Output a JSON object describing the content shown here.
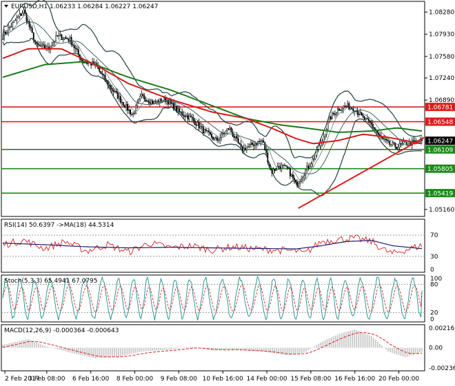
{
  "chart_data": [
    {
      "type": "candlestick",
      "panel": "main",
      "title": "EURUSD,H1  1.06233 1.06284 1.06227 1.06247",
      "symbol": "EURUSD",
      "timeframe": "H1",
      "ohlc_header": {
        "open": 1.06233,
        "high": 1.06284,
        "low": 1.06227,
        "close": 1.06247
      },
      "ylim": [
        1.0505,
        1.0845
      ],
      "y_ticks": [
        "1.08280",
        "1.07930",
        "1.07580",
        "1.07240",
        "1.06890",
        "1.05160"
      ],
      "x_ticks": [
        "2 Feb 2017",
        "3 Feb 08:00",
        "6 Feb 16:00",
        "8 Feb 00:00",
        "9 Feb 08:00",
        "10 Feb 16:00",
        "14 Feb 00:00",
        "15 Feb 08:00",
        "16 Feb 16:00",
        "20 Feb 00:00"
      ],
      "current_price": "1.06247",
      "horizontal_levels": [
        {
          "value": 1.06781,
          "label": "1.06781",
          "color": "#e11b1b"
        },
        {
          "value": 1.06548,
          "label": "1.06548",
          "color": "#e11b1b"
        },
        {
          "value": 1.06109,
          "label": "1.06109",
          "color": "#1a8a1a"
        },
        {
          "value": 1.05805,
          "label": "1.05805",
          "color": "#1a8a1a"
        },
        {
          "value": 1.05419,
          "label": "1.05419",
          "color": "#1a8a1a"
        }
      ],
      "trendline": {
        "from": [
          0.705,
          1.0518
        ],
        "to": [
          1.0,
          1.063
        ],
        "color": "#e11b1b"
      },
      "anchors": {
        "close": [
          [
            0,
            1.079
          ],
          [
            0.03,
            1.0815
          ],
          [
            0.05,
            1.083
          ],
          [
            0.08,
            1.0775
          ],
          [
            0.11,
            1.077
          ],
          [
            0.13,
            1.079
          ],
          [
            0.16,
            1.0785
          ],
          [
            0.19,
            1.075
          ],
          [
            0.22,
            1.0745
          ],
          [
            0.25,
            1.0715
          ],
          [
            0.28,
            1.069
          ],
          [
            0.31,
            1.0665
          ],
          [
            0.33,
            1.0695
          ],
          [
            0.36,
            1.0685
          ],
          [
            0.39,
            1.069
          ],
          [
            0.42,
            1.067
          ],
          [
            0.45,
            1.066
          ],
          [
            0.48,
            1.064
          ],
          [
            0.51,
            1.0625
          ],
          [
            0.54,
            1.0645
          ],
          [
            0.57,
            1.061
          ],
          [
            0.6,
            1.062
          ],
          [
            0.62,
            1.0625
          ],
          [
            0.64,
            1.0575
          ],
          [
            0.66,
            1.0585
          ],
          [
            0.68,
            1.058
          ],
          [
            0.7,
            1.0555
          ],
          [
            0.72,
            1.0575
          ],
          [
            0.74,
            1.0595
          ],
          [
            0.76,
            1.062
          ],
          [
            0.78,
            1.066
          ],
          [
            0.8,
            1.0675
          ],
          [
            0.82,
            1.068
          ],
          [
            0.84,
            1.0675
          ],
          [
            0.86,
            1.066
          ],
          [
            0.88,
            1.065
          ],
          [
            0.9,
            1.063
          ],
          [
            0.92,
            1.062
          ],
          [
            0.94,
            1.0615
          ],
          [
            0.96,
            1.062
          ],
          [
            0.98,
            1.0622
          ],
          [
            1.0,
            1.06247
          ]
        ],
        "ma_slow": [
          [
            0,
            1.0725
          ],
          [
            0.1,
            1.0745
          ],
          [
            0.2,
            1.075
          ],
          [
            0.3,
            1.0725
          ],
          [
            0.4,
            1.0705
          ],
          [
            0.5,
            1.068
          ],
          [
            0.58,
            1.066
          ],
          [
            0.66,
            1.065
          ],
          [
            0.72,
            1.0645
          ],
          [
            0.8,
            1.0638
          ],
          [
            0.88,
            1.064
          ],
          [
            0.94,
            1.0645
          ],
          [
            1.0,
            1.064
          ]
        ],
        "ma_mid": [
          [
            0,
            1.0755
          ],
          [
            0.06,
            1.077
          ],
          [
            0.14,
            1.077
          ],
          [
            0.22,
            1.0745
          ],
          [
            0.3,
            1.0715
          ],
          [
            0.4,
            1.069
          ],
          [
            0.5,
            1.067
          ],
          [
            0.58,
            1.066
          ],
          [
            0.64,
            1.0645
          ],
          [
            0.7,
            1.0628
          ],
          [
            0.74,
            1.062
          ],
          [
            0.8,
            1.0625
          ],
          [
            0.86,
            1.0635
          ],
          [
            0.92,
            1.063
          ],
          [
            1.0,
            1.062
          ]
        ]
      }
    },
    {
      "type": "line",
      "panel": "rsi",
      "title": "RSI(14) 50.6397  ->MA(18) 44.5314",
      "rsi_value": 50.6397,
      "ma_value": 44.5314,
      "ylim": [
        0,
        100
      ],
      "y_ticks": [
        "70",
        "30",
        "0"
      ],
      "levels": [
        70,
        30
      ],
      "series": [
        {
          "color": "#d42020",
          "anchors": [
            [
              0,
              52
            ],
            [
              0.05,
              60
            ],
            [
              0.1,
              45
            ],
            [
              0.15,
              58
            ],
            [
              0.2,
              40
            ],
            [
              0.25,
              52
            ],
            [
              0.3,
              38
            ],
            [
              0.35,
              55
            ],
            [
              0.4,
              46
            ],
            [
              0.45,
              50
            ],
            [
              0.5,
              42
            ],
            [
              0.55,
              48
            ],
            [
              0.6,
              44
            ],
            [
              0.65,
              42
            ],
            [
              0.7,
              40
            ],
            [
              0.72,
              35
            ],
            [
              0.76,
              58
            ],
            [
              0.8,
              62
            ],
            [
              0.84,
              64
            ],
            [
              0.88,
              58
            ],
            [
              0.91,
              42
            ],
            [
              0.93,
              35
            ],
            [
              0.96,
              42
            ],
            [
              1.0,
              50.6
            ]
          ]
        },
        {
          "color": "#1c1c6e",
          "anchors": [
            [
              0,
              55
            ],
            [
              0.1,
              52
            ],
            [
              0.2,
              48
            ],
            [
              0.3,
              46
            ],
            [
              0.4,
              47
            ],
            [
              0.5,
              46
            ],
            [
              0.6,
              45
            ],
            [
              0.7,
              44
            ],
            [
              0.76,
              50
            ],
            [
              0.82,
              58
            ],
            [
              0.88,
              60
            ],
            [
              0.93,
              50
            ],
            [
              1.0,
              44.5
            ]
          ]
        }
      ]
    },
    {
      "type": "line",
      "panel": "stoch",
      "title": "Stoch(5,3,3) 65.4941 67.0795",
      "main_value": 65.4941,
      "signal_value": 67.0795,
      "ylim": [
        0,
        100
      ],
      "y_ticks": [
        "100",
        "80",
        "20",
        "0"
      ],
      "levels": [
        80,
        20
      ],
      "oscillations": 27,
      "series": [
        {
          "name": "main",
          "color": "#1c8a8a"
        },
        {
          "name": "signal",
          "color": "#d42020",
          "dashed": true
        }
      ]
    },
    {
      "type": "bar",
      "panel": "macd",
      "title": "MACD(12,26,9) -0.000364 -0.000643",
      "macd_value": -0.000364,
      "signal_value": -0.000643,
      "ylim": [
        -0.0024,
        0.0024
      ],
      "y_ticks": [
        "0.002161",
        "0.00",
        "-0.002368"
      ],
      "histogram_anchors": [
        [
          0,
          0.0003
        ],
        [
          0.06,
          0.0009
        ],
        [
          0.1,
          0.0002
        ],
        [
          0.16,
          -0.0005
        ],
        [
          0.22,
          -0.0011
        ],
        [
          0.28,
          -0.0009
        ],
        [
          0.33,
          -0.0004
        ],
        [
          0.4,
          -0.0002
        ],
        [
          0.45,
          0.0001
        ],
        [
          0.5,
          -0.0003
        ],
        [
          0.55,
          -0.0002
        ],
        [
          0.62,
          -0.0004
        ],
        [
          0.68,
          -0.0008
        ],
        [
          0.72,
          -0.0005
        ],
        [
          0.76,
          0.0006
        ],
        [
          0.8,
          0.0014
        ],
        [
          0.84,
          0.0019
        ],
        [
          0.88,
          0.0012
        ],
        [
          0.92,
          -0.0004
        ],
        [
          0.96,
          -0.001
        ],
        [
          1.0,
          -0.0004
        ]
      ],
      "signal_color": "#d42020"
    }
  ]
}
